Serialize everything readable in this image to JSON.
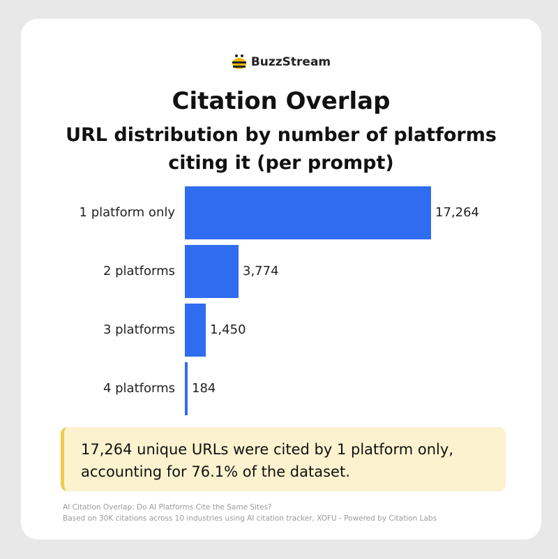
{
  "brand": {
    "name": "BuzzStream",
    "icon": "bee-icon"
  },
  "callout": "17,264 unique URLs were cited by 1 platform only, accounting for 76.1% of the dataset.",
  "source": {
    "line1": "AI Citation Overlap: Do AI Platforms Cite the Same Sites?",
    "line2": "Based on 30K citations across 10 industries using AI citation tracker, XOFU - Powered by Citation Labs"
  },
  "colors": {
    "bar": "#2f6cf0",
    "callout_bg": "#fcf2cf",
    "callout_accent": "#f2c94c"
  },
  "chart_data": {
    "type": "bar",
    "orientation": "horizontal",
    "title": "Citation Overlap",
    "subtitle": "URL distribution by number of platforms citing it (per prompt)",
    "categories": [
      "1 platform only",
      "2 platforms",
      "3 platforms",
      "4 platforms"
    ],
    "values": [
      17264,
      3774,
      1450,
      184
    ],
    "value_labels": [
      "17,264",
      "3,774",
      "1,450",
      "184"
    ],
    "xlim": [
      0,
      17264
    ],
    "grid": false,
    "legend": "none"
  }
}
